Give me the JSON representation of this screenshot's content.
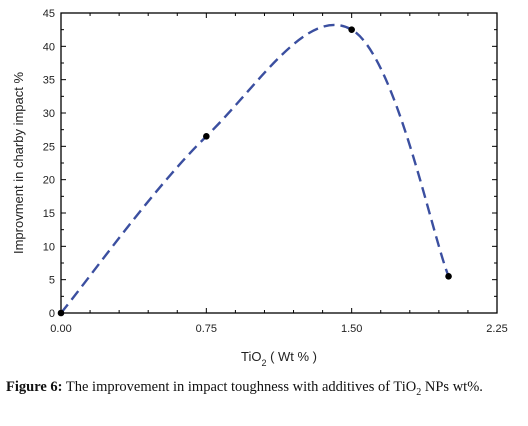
{
  "chart_data": {
    "type": "line",
    "x": [
      0.0,
      0.75,
      1.5,
      2.0
    ],
    "y": [
      0,
      26.5,
      42.5,
      5.5
    ],
    "xlim": [
      0,
      2.25
    ],
    "ylim": [
      0,
      45
    ],
    "xticks": [
      "0.00",
      "0.75",
      "1.50",
      "2.25"
    ],
    "yticks": [
      "0",
      "5",
      "10",
      "15",
      "20",
      "25",
      "30",
      "35",
      "40",
      "45"
    ],
    "xlabel_main": "TiO",
    "xlabel_sub": "2",
    "xlabel_rest": " ( Wt % )",
    "ylabel": "Improvment in charby impact %",
    "line_color": "#3b4fa0",
    "marker_color": "#000000",
    "grid": false
  },
  "caption": {
    "label": "Figure 6:",
    "text_1": " The improvement in impact toughness  with additives of TiO",
    "sub": "2",
    "text_2": " NPs wt%."
  }
}
